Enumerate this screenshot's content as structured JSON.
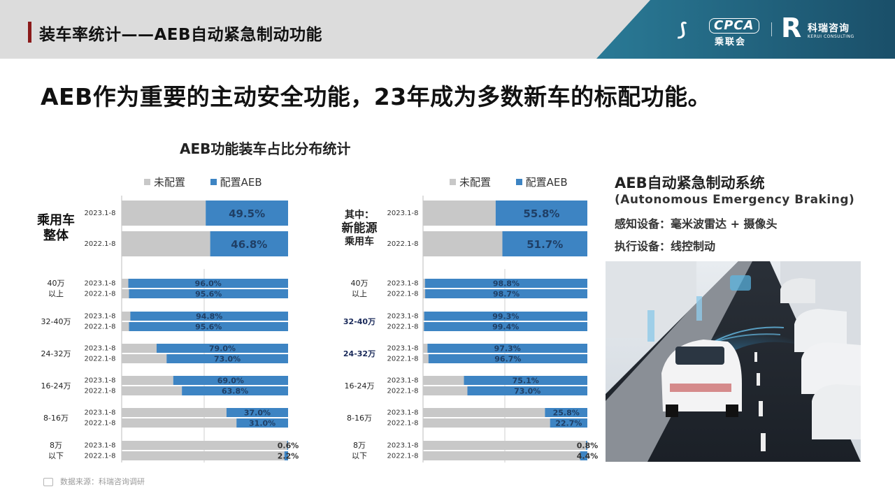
{
  "header": {
    "title": "装车率统计——AEB自动紧急制动功能",
    "logo_cpca_text": "CPCA",
    "logo_cpca_cn": "乘联会",
    "logo_kerui_cn": "科瑞咨询",
    "logo_kerui_en": "KERUI CONSULTING"
  },
  "headline": "AEB作为重要的主动安全功能，23年成为多数新车的标配功能。",
  "chart_title": "AEB功能装车占比分布统计",
  "legend": {
    "unconfigured": "未配置",
    "configured": "配置AEB"
  },
  "colors": {
    "unconfigured": "#c8c8c8",
    "configured": "#3d84c3",
    "header_accent": "#8b1a1a",
    "header_banner": "#1f5f7a"
  },
  "chart_data": [
    {
      "type": "bar",
      "orientation": "horizontal",
      "stacked": "100%",
      "series": [
        {
          "name": "未配置",
          "color": "#c8c8c8"
        },
        {
          "name": "配置AEB",
          "color": "#3d84c3"
        }
      ],
      "groups": [
        {
          "label_lines": [
            "乘用车",
            "整体"
          ],
          "style": "big",
          "rows": [
            {
              "period": "2023.1-8",
              "value": 49.5,
              "label": "49.5%"
            },
            {
              "period": "2022.1-8",
              "value": 46.8,
              "label": "46.8%"
            }
          ]
        },
        {
          "label_lines": [
            "40万",
            "以上"
          ],
          "style": "small",
          "rows": [
            {
              "period": "2023.1-8",
              "value": 96.0,
              "label": "96.0%"
            },
            {
              "period": "2022.1-8",
              "value": 95.6,
              "label": "95.6%"
            }
          ]
        },
        {
          "label_lines": [
            "32-40万"
          ],
          "style": "small",
          "rows": [
            {
              "period": "2023.1-8",
              "value": 94.8,
              "label": "94.8%"
            },
            {
              "period": "2022.1-8",
              "value": 95.6,
              "label": "95.6%"
            }
          ]
        },
        {
          "label_lines": [
            "24-32万"
          ],
          "style": "small",
          "rows": [
            {
              "period": "2023.1-8",
              "value": 79.0,
              "label": "79.0%"
            },
            {
              "period": "2022.1-8",
              "value": 73.0,
              "label": "73.0%"
            }
          ]
        },
        {
          "label_lines": [
            "16-24万"
          ],
          "style": "small",
          "rows": [
            {
              "period": "2023.1-8",
              "value": 69.0,
              "label": "69.0%"
            },
            {
              "period": "2022.1-8",
              "value": 63.8,
              "label": "63.8%"
            }
          ]
        },
        {
          "label_lines": [
            "8-16万"
          ],
          "style": "small",
          "rows": [
            {
              "period": "2023.1-8",
              "value": 37.0,
              "label": "37.0%"
            },
            {
              "period": "2022.1-8",
              "value": 31.0,
              "label": "31.0%"
            }
          ]
        },
        {
          "label_lines": [
            "8万",
            "以下"
          ],
          "style": "small",
          "rows": [
            {
              "period": "2023.1-8",
              "value": 0.6,
              "label": "0.6%"
            },
            {
              "period": "2022.1-8",
              "value": 2.2,
              "label": "2.2%"
            }
          ]
        }
      ]
    },
    {
      "type": "bar",
      "orientation": "horizontal",
      "stacked": "100%",
      "series": [
        {
          "name": "未配置",
          "color": "#c8c8c8"
        },
        {
          "name": "配置AEB",
          "color": "#3d84c3"
        }
      ],
      "groups": [
        {
          "label_lines": [
            "其中：",
            "新能源",
            "乘用车"
          ],
          "style": "nev",
          "rows": [
            {
              "period": "2023.1-8",
              "value": 55.8,
              "label": "55.8%"
            },
            {
              "period": "2022.1-8",
              "value": 51.7,
              "label": "51.7%"
            }
          ]
        },
        {
          "label_lines": [
            "40万",
            "以上"
          ],
          "style": "small",
          "rows": [
            {
              "period": "2023.1-8",
              "value": 98.8,
              "label": "98.8%"
            },
            {
              "period": "2022.1-8",
              "value": 98.7,
              "label": "98.7%"
            }
          ]
        },
        {
          "label_lines": [
            "32-40万"
          ],
          "style": "small-bold",
          "rows": [
            {
              "period": "2023.1-8",
              "value": 99.3,
              "label": "99.3%"
            },
            {
              "period": "2022.1-8",
              "value": 99.4,
              "label": "99.4%"
            }
          ]
        },
        {
          "label_lines": [
            "24-32万"
          ],
          "style": "small-bold",
          "rows": [
            {
              "period": "2023.1-8",
              "value": 97.3,
              "label": "97.3%"
            },
            {
              "period": "2022.1-8",
              "value": 96.7,
              "label": "96.7%"
            }
          ]
        },
        {
          "label_lines": [
            "16-24万"
          ],
          "style": "small",
          "rows": [
            {
              "period": "2023.1-8",
              "value": 75.1,
              "label": "75.1%"
            },
            {
              "period": "2022.1-8",
              "value": 73.0,
              "label": "73.0%"
            }
          ]
        },
        {
          "label_lines": [
            "8-16万"
          ],
          "style": "small",
          "rows": [
            {
              "period": "2023.1-8",
              "value": 25.8,
              "label": "25.8%"
            },
            {
              "period": "2022.1-8",
              "value": 22.7,
              "label": "22.7%"
            }
          ]
        },
        {
          "label_lines": [
            "8万",
            "以下"
          ],
          "style": "small",
          "rows": [
            {
              "period": "2023.1-8",
              "value": 0.8,
              "label": "0.8%"
            },
            {
              "period": "2022.1-8",
              "value": 4.4,
              "label": "4.4%"
            }
          ]
        }
      ]
    }
  ],
  "aeb_panel": {
    "title": "AEB自动紧急制动系统",
    "subtitle": "(Autonomous Emergency Braking)",
    "sensing": "感知设备：毫米波雷达 + 摄像头",
    "actuation": "执行设备：线控制动"
  },
  "footer": "数据来源：科瑞咨询调研"
}
